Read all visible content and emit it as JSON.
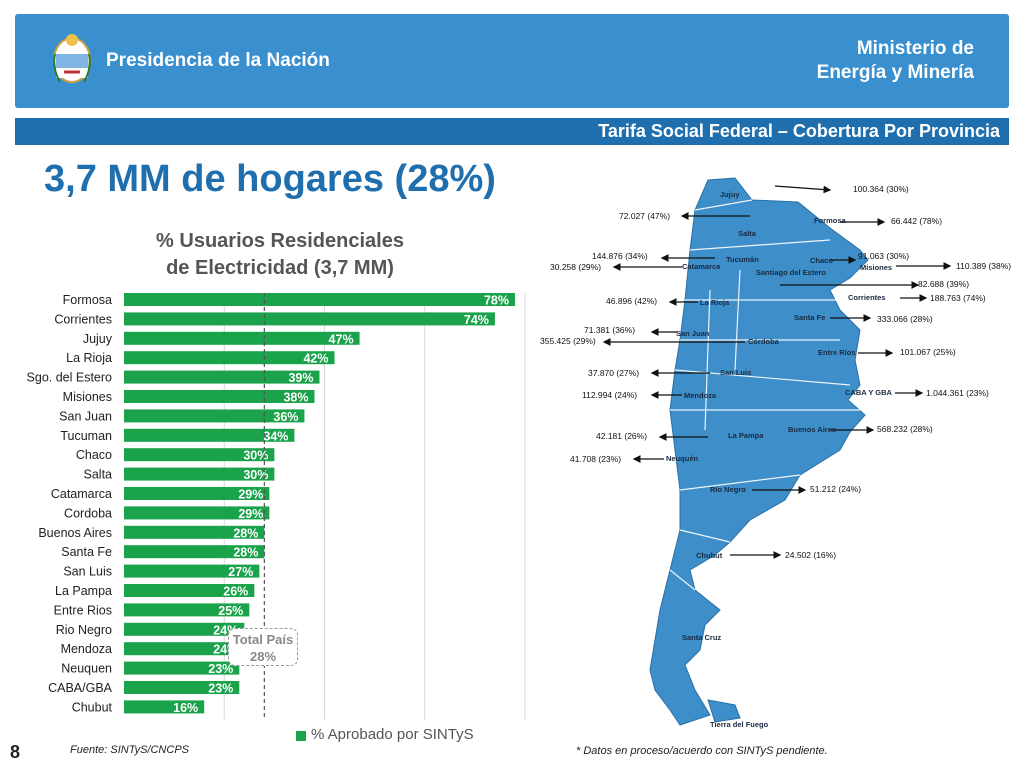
{
  "header": {
    "org": "Presidencia de la Nación",
    "ministry_line1": "Ministerio de",
    "ministry_line2": "Energía y Minería",
    "subtitle": "Tarifa Social Federal – Cobertura Por Provincia"
  },
  "headline": "3,7 MM de hogares (28%)",
  "chart_title_line1": "% Usuarios Residenciales",
  "chart_title_line2": "de Electricidad (3,7 MM)",
  "total": {
    "label": "Total País",
    "value": "28%"
  },
  "legend_label": "% Aprobado por SINTyS",
  "page_number": "8",
  "source": "Fuente: SINTyS/CNCPS",
  "footnote": "* Datos en proceso/acuerdo con SINTyS pendiente.",
  "colors": {
    "bar": "#1aa34a",
    "header": "#3a8fcf",
    "subbar": "#1f6fae",
    "map": "#3d8ec9"
  },
  "chart_data": {
    "type": "bar",
    "orientation": "horizontal",
    "categories": [
      "Formosa",
      "Corrientes",
      "Jujuy",
      "La Rioja",
      "Sgo. del Estero",
      "Misiones",
      "San Juan",
      "Tucuman",
      "Chaco",
      "Salta",
      "Catamarca",
      "Cordoba",
      "Buenos Aires",
      "Santa Fe",
      "San Luis",
      "La Pampa",
      "Entre Rios",
      "Rio Negro",
      "Mendoza",
      "Neuquen",
      "CABA/GBA",
      "Chubut"
    ],
    "values": [
      78,
      74,
      47,
      42,
      39,
      38,
      36,
      34,
      30,
      30,
      29,
      29,
      28,
      28,
      27,
      26,
      25,
      24,
      24,
      23,
      23,
      16
    ],
    "labels": [
      "78%",
      "74%",
      "47%",
      "42%",
      "39%",
      "38%",
      "36%",
      "34%",
      "30%",
      "30%",
      "29%",
      "29%",
      "28%",
      "28%",
      "27%",
      "26%",
      "25%",
      "24%",
      "24%",
      "23%",
      "23%",
      "16%"
    ],
    "xlim": [
      0,
      80
    ],
    "reference_line": 28,
    "series": [
      {
        "name": "% Aprobado por SINTyS",
        "values": [
          78,
          74,
          47,
          42,
          39,
          38,
          36,
          34,
          30,
          30,
          29,
          29,
          28,
          28,
          27,
          26,
          25,
          24,
          24,
          23,
          23,
          16
        ]
      }
    ]
  },
  "map": {
    "provinces": [
      "Jujuy",
      "Salta",
      "Formosa",
      "Tucumán",
      "Chaco",
      "Catamarca",
      "Santiago del Estero",
      "Misiones",
      "Corrientes",
      "La Rioja",
      "San Juan",
      "Córdoba",
      "Santa Fe",
      "Entre Ríos",
      "San Luis",
      "Mendoza",
      "CABA Y GBA",
      "La Pampa",
      "Buenos Aires",
      "Neuquén",
      "Río Negro",
      "Chubut",
      "Santa Cruz",
      "Tierra del Fuego"
    ],
    "annotations": [
      "100.364 (30%)",
      "72.027 (47%)",
      "66.442 (78%)",
      "144.876 (34%)",
      "30.258  (29%)",
      "91.063 (30%)",
      "110.389 (38%)",
      "82.688  (39%)",
      "46.896 (42%)",
      "188.763 (74%)",
      "71.381 (36%)",
      "355.425 (29%)",
      "333.066 (28%)",
      "101.067 (25%)",
      "37.870 (27%)",
      "112.994 (24%)",
      "1.044.361  (23%)",
      "568.232 (28%)",
      "42.181 (26%)",
      "41.708 (23%)",
      "51.212 (24%)",
      "24.502  (16%)"
    ]
  }
}
